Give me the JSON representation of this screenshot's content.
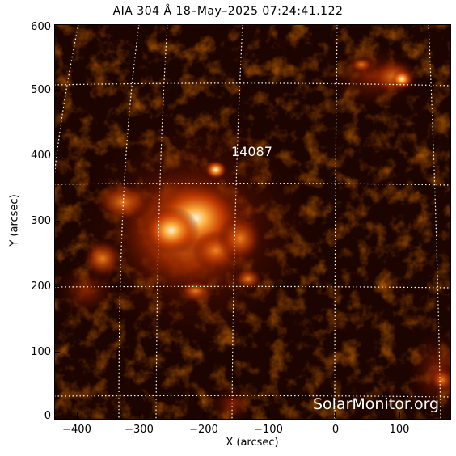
{
  "title": "AIA 304 Å 18–May–2025 07:24:41.122",
  "axes": {
    "xlabel": "X (arcsec)",
    "ylabel": "Y (arcsec)",
    "xticks": [
      "−400",
      "−300",
      "−200",
      "−100",
      "0",
      "100"
    ],
    "yticks": [
      "600",
      "500",
      "400",
      "300",
      "200",
      "100",
      "0"
    ]
  },
  "region_label": "14087",
  "watermark": "SolarMonitor.org",
  "colors": {
    "background": "#1a0300",
    "plasma_mid": "#c03a00",
    "plasma_bright": "#ff9a30",
    "plasma_peak": "#fff4d0",
    "grid": "#ffffff"
  }
}
